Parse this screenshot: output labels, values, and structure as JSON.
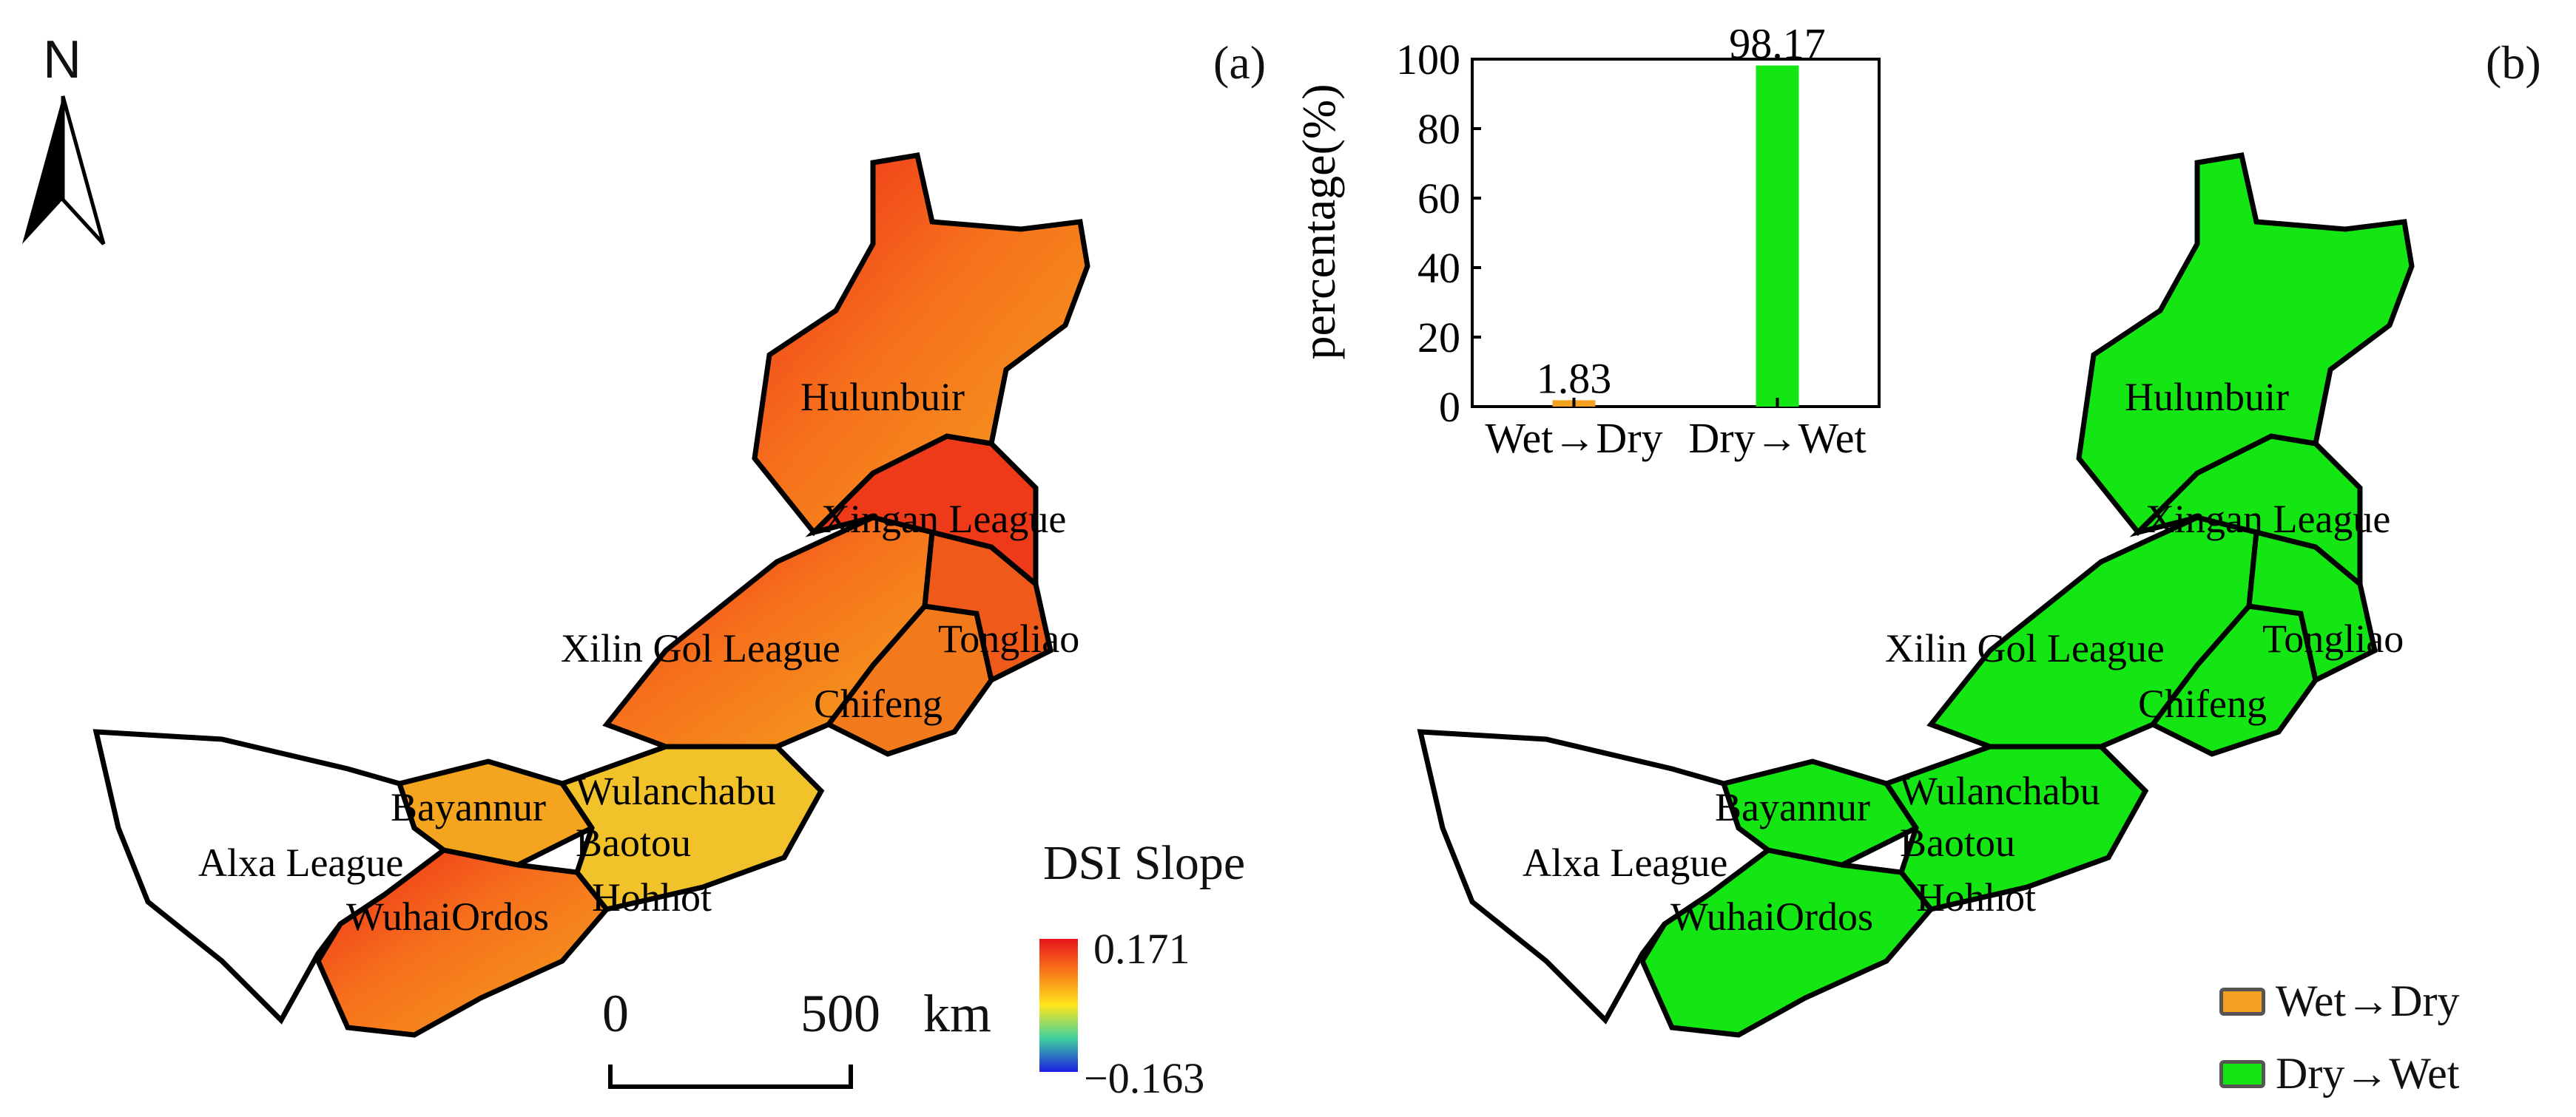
{
  "north_arrow": {
    "label": "N"
  },
  "panels": [
    {
      "id": "a",
      "label": "(a)"
    },
    {
      "id": "b",
      "label": "(b)"
    }
  ],
  "regions": [
    "Hulunbuir",
    "Xingan League",
    "Xilin Gol League",
    "Tongliao",
    "Chifeng",
    "Wulanchabu",
    "Bayannur",
    "Baotou",
    "Alxa League",
    "Wuhai",
    "Ordos",
    "Hohhot"
  ],
  "map_a": {
    "labels": {
      "hulunbuir": "Hulunbuir",
      "xingan": "Xingan League",
      "xilingol": "Xilin Gol League",
      "tongliao": "Tongliao",
      "chifeng": "Chifeng",
      "wulanchabu": "Wulanchabu",
      "bayannur": "Bayannur",
      "baotou": "Baotou",
      "alxa": "Alxa League",
      "wuhai": "Wuhai",
      "ordos": "Ordos",
      "hohhot": "Hohhot"
    }
  },
  "map_b": {
    "labels": {
      "hulunbuir": "Hulunbuir",
      "xingan": "Xingan League",
      "xilingol": "Xilin Gol League",
      "tongliao": "Tongliao",
      "chifeng": "Chifeng",
      "wulanchabu": "Wulanchabu",
      "bayannur": "Bayannur",
      "baotou": "Baotou",
      "alxa": "Alxa League",
      "wuhai": "Wuhai",
      "ordos": "Ordos",
      "hohhot": "Hohhot"
    }
  },
  "scale_bar": {
    "start": "0",
    "end": "500",
    "unit": "km"
  },
  "dsi_legend": {
    "title": "DSI Slope",
    "max": "0.171",
    "min": "−0.163",
    "colors": [
      "#e8141c",
      "#f97a1a",
      "#fce61c",
      "#3fd0a0",
      "#1a1ee0"
    ]
  },
  "class_legend": [
    {
      "label": "Wet→Dry",
      "color": "#f5a020"
    },
    {
      "label": "Dry→Wet",
      "color": "#14e614"
    }
  ],
  "chart_data": {
    "type": "bar",
    "categories": [
      "Wet→Dry",
      "Dry→Wet"
    ],
    "values": [
      1.83,
      98.17
    ],
    "value_labels": [
      "1.83",
      "98.17"
    ],
    "colors": [
      "#f5a020",
      "#14e614"
    ],
    "xlabel": "",
    "ylabel": "percentage(%)",
    "ylim": [
      0,
      100
    ],
    "yticks": [
      0,
      20,
      40,
      60,
      80,
      100
    ],
    "grid": false
  }
}
